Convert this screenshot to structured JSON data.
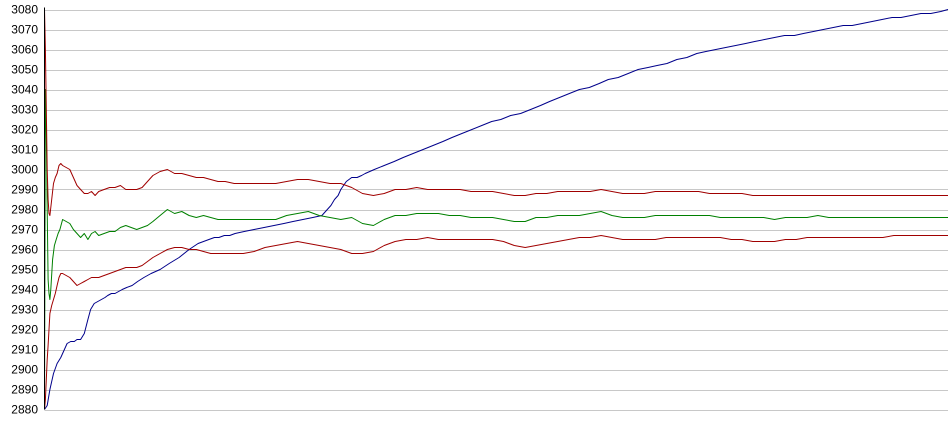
{
  "chart_data": {
    "type": "line",
    "title": "",
    "xlabel": "",
    "ylabel": "",
    "xlim": [
      0,
      1000
    ],
    "ylim": [
      2880,
      3080
    ],
    "yticks": [
      2880,
      2890,
      2900,
      2910,
      2920,
      2930,
      2940,
      2950,
      2960,
      2970,
      2980,
      2990,
      3000,
      3010,
      3020,
      3030,
      3040,
      3050,
      3060,
      3070,
      3080
    ],
    "grid": true,
    "legend": "none",
    "series": [
      {
        "color": "#00008b",
        "x": [
          0,
          3,
          6,
          10,
          14,
          18,
          22,
          25,
          29,
          33,
          36,
          40,
          44,
          48,
          51,
          55,
          59,
          63,
          67,
          70,
          74,
          78,
          82,
          86,
          91,
          97,
          103,
          110,
          118,
          128,
          138,
          149,
          160,
          170,
          176,
          182,
          188,
          193,
          199,
          205,
          211,
          221,
          232,
          243,
          254,
          265,
          275,
          286,
          297,
          307,
          313,
          317,
          321,
          325,
          328,
          334,
          340,
          346,
          351,
          355,
          365,
          376,
          387,
          397,
          408,
          419,
          430,
          441,
          451,
          462,
          473,
          484,
          495,
          505,
          516,
          527,
          538,
          549,
          559,
          570,
          581,
          592,
          603,
          614,
          624,
          635,
          646,
          657,
          668,
          678,
          689,
          700,
          711,
          722,
          732,
          743,
          754,
          765,
          776,
          786,
          797,
          808,
          819,
          830,
          840,
          851,
          862,
          873,
          884,
          894,
          905,
          916,
          927,
          938,
          948,
          959,
          970,
          981,
          992,
          1000
        ],
        "y": [
          2880,
          2882,
          2890,
          2898,
          2903,
          2906,
          2910,
          2913,
          2914,
          2914,
          2915,
          2915,
          2918,
          2925,
          2930,
          2933,
          2934,
          2935,
          2936,
          2937,
          2938,
          2938,
          2939,
          2940,
          2941,
          2942,
          2944,
          2946,
          2948,
          2950,
          2953,
          2956,
          2960,
          2963,
          2964,
          2965,
          2966,
          2966,
          2967,
          2967,
          2968,
          2969,
          2970,
          2971,
          2972,
          2973,
          2974,
          2975,
          2976,
          2977,
          2980,
          2982,
          2985,
          2987,
          2990,
          2994,
          2996,
          2996,
          2997,
          2998,
          3000,
          3002,
          3004,
          3006,
          3008,
          3010,
          3012,
          3014,
          3016,
          3018,
          3020,
          3022,
          3024,
          3025,
          3027,
          3028,
          3030,
          3032,
          3034,
          3036,
          3038,
          3040,
          3041,
          3043,
          3045,
          3046,
          3048,
          3050,
          3051,
          3052,
          3053,
          3055,
          3056,
          3058,
          3059,
          3060,
          3061,
          3062,
          3063,
          3064,
          3065,
          3066,
          3067,
          3067,
          3068,
          3069,
          3070,
          3071,
          3072,
          3072,
          3073,
          3074,
          3075,
          3076,
          3076,
          3077,
          3078,
          3078,
          3079,
          3080
        ]
      },
      {
        "color": "#008000",
        "x": [
          0,
          1,
          2,
          3,
          4,
          5,
          6,
          7,
          9,
          11,
          13,
          15,
          17,
          20,
          24,
          28,
          32,
          36,
          40,
          44,
          48,
          52,
          56,
          60,
          66,
          72,
          78,
          84,
          90,
          96,
          102,
          108,
          114,
          120,
          128,
          136,
          144,
          152,
          160,
          168,
          176,
          184,
          192,
          200,
          210,
          220,
          232,
          244,
          256,
          268,
          280,
          292,
          304,
          316,
          328,
          340,
          352,
          364,
          376,
          388,
          400,
          412,
          424,
          436,
          448,
          460,
          472,
          484,
          496,
          508,
          520,
          532,
          544,
          556,
          568,
          580,
          592,
          604,
          616,
          628,
          640,
          652,
          664,
          676,
          688,
          700,
          712,
          724,
          736,
          748,
          760,
          772,
          784,
          796,
          808,
          820,
          832,
          844,
          856,
          868,
          880,
          892,
          904,
          916,
          928,
          940,
          952,
          964,
          976,
          988,
          1000
        ],
        "y": [
          2880,
          3040,
          3020,
          2980,
          2945,
          2938,
          2935,
          2940,
          2955,
          2962,
          2965,
          2968,
          2970,
          2975,
          2974,
          2973,
          2970,
          2968,
          2966,
          2968,
          2965,
          2968,
          2969,
          2967,
          2968,
          2969,
          2969,
          2971,
          2972,
          2971,
          2970,
          2971,
          2972,
          2974,
          2977,
          2980,
          2978,
          2979,
          2977,
          2976,
          2977,
          2976,
          2975,
          2975,
          2975,
          2975,
          2975,
          2975,
          2975,
          2977,
          2978,
          2979,
          2977,
          2976,
          2975,
          2976,
          2973,
          2972,
          2975,
          2977,
          2977,
          2978,
          2978,
          2978,
          2977,
          2977,
          2976,
          2976,
          2976,
          2975,
          2974,
          2974,
          2976,
          2976,
          2977,
          2977,
          2977,
          2978,
          2979,
          2977,
          2976,
          2976,
          2976,
          2977,
          2977,
          2977,
          2977,
          2977,
          2977,
          2976,
          2976,
          2976,
          2976,
          2976,
          2975,
          2976,
          2976,
          2976,
          2977,
          2976,
          2976,
          2976,
          2976,
          2976,
          2976,
          2976,
          2976,
          2976,
          2976,
          2976,
          2976
        ]
      },
      {
        "color": "#a00000",
        "x": [
          0,
          1,
          2,
          3,
          4,
          5,
          6,
          8,
          10,
          12,
          14,
          16,
          18,
          20,
          24,
          28,
          32,
          36,
          40,
          44,
          48,
          52,
          56,
          60,
          66,
          72,
          78,
          84,
          90,
          96,
          102,
          108,
          114,
          120,
          128,
          136,
          144,
          152,
          160,
          168,
          176,
          184,
          192,
          200,
          210,
          220,
          232,
          244,
          256,
          268,
          280,
          292,
          304,
          316,
          328,
          340,
          352,
          364,
          376,
          388,
          400,
          412,
          424,
          436,
          448,
          460,
          472,
          484,
          496,
          508,
          520,
          532,
          544,
          556,
          568,
          580,
          592,
          604,
          616,
          628,
          640,
          652,
          664,
          676,
          688,
          700,
          712,
          724,
          736,
          748,
          760,
          772,
          784,
          796,
          808,
          820,
          832,
          844,
          856,
          868,
          880,
          892,
          904,
          916,
          928,
          940,
          952,
          964,
          976,
          988,
          1000
        ],
        "y": [
          3080,
          3060,
          3030,
          3000,
          2985,
          2978,
          2977,
          2985,
          2993,
          2996,
          2998,
          3002,
          3003,
          3002,
          3001,
          3000,
          2996,
          2992,
          2990,
          2988,
          2988,
          2989,
          2987,
          2989,
          2990,
          2991,
          2991,
          2992,
          2990,
          2990,
          2990,
          2991,
          2994,
          2997,
          2999,
          3000,
          2998,
          2998,
          2997,
          2996,
          2996,
          2995,
          2994,
          2994,
          2993,
          2993,
          2993,
          2993,
          2993,
          2994,
          2995,
          2995,
          2994,
          2993,
          2993,
          2991,
          2988,
          2987,
          2988,
          2990,
          2990,
          2991,
          2990,
          2990,
          2990,
          2990,
          2989,
          2989,
          2989,
          2988,
          2987,
          2987,
          2988,
          2988,
          2989,
          2989,
          2989,
          2989,
          2990,
          2989,
          2988,
          2988,
          2988,
          2989,
          2989,
          2989,
          2989,
          2989,
          2988,
          2988,
          2988,
          2988,
          2987,
          2987,
          2987,
          2987,
          2987,
          2987,
          2987,
          2987,
          2987,
          2987,
          2987,
          2987,
          2987,
          2987,
          2987,
          2987,
          2987,
          2987,
          2987
        ]
      },
      {
        "color": "#a00000",
        "x": [
          0,
          1,
          2,
          3,
          4,
          5,
          6,
          8,
          10,
          12,
          14,
          16,
          18,
          20,
          24,
          28,
          32,
          36,
          40,
          44,
          48,
          52,
          56,
          60,
          66,
          72,
          78,
          84,
          90,
          96,
          102,
          108,
          114,
          120,
          128,
          136,
          144,
          152,
          160,
          168,
          176,
          184,
          192,
          200,
          210,
          220,
          232,
          244,
          256,
          268,
          280,
          292,
          304,
          316,
          328,
          340,
          352,
          364,
          376,
          388,
          400,
          412,
          424,
          436,
          448,
          460,
          472,
          484,
          496,
          508,
          520,
          532,
          544,
          556,
          568,
          580,
          592,
          604,
          616,
          628,
          640,
          652,
          664,
          676,
          688,
          700,
          712,
          724,
          736,
          748,
          760,
          772,
          784,
          796,
          808,
          820,
          832,
          844,
          856,
          868,
          880,
          892,
          904,
          916,
          928,
          940,
          952,
          964,
          976,
          988,
          1000
        ],
        "y": [
          2880,
          2885,
          2895,
          2905,
          2912,
          2920,
          2928,
          2932,
          2935,
          2938,
          2942,
          2946,
          2948,
          2948,
          2947,
          2946,
          2944,
          2942,
          2943,
          2944,
          2945,
          2946,
          2946,
          2946,
          2947,
          2948,
          2949,
          2950,
          2951,
          2951,
          2951,
          2952,
          2954,
          2956,
          2958,
          2960,
          2961,
          2961,
          2960,
          2960,
          2959,
          2958,
          2958,
          2958,
          2958,
          2958,
          2959,
          2961,
          2962,
          2963,
          2964,
          2963,
          2962,
          2961,
          2960,
          2958,
          2958,
          2959,
          2962,
          2964,
          2965,
          2965,
          2966,
          2965,
          2965,
          2965,
          2965,
          2965,
          2965,
          2964,
          2962,
          2961,
          2962,
          2963,
          2964,
          2965,
          2966,
          2966,
          2967,
          2966,
          2965,
          2965,
          2965,
          2965,
          2966,
          2966,
          2966,
          2966,
          2966,
          2966,
          2965,
          2965,
          2964,
          2964,
          2964,
          2965,
          2965,
          2966,
          2966,
          2966,
          2966,
          2966,
          2966,
          2966,
          2966,
          2967,
          2967,
          2967,
          2967,
          2967,
          2967
        ]
      }
    ]
  }
}
